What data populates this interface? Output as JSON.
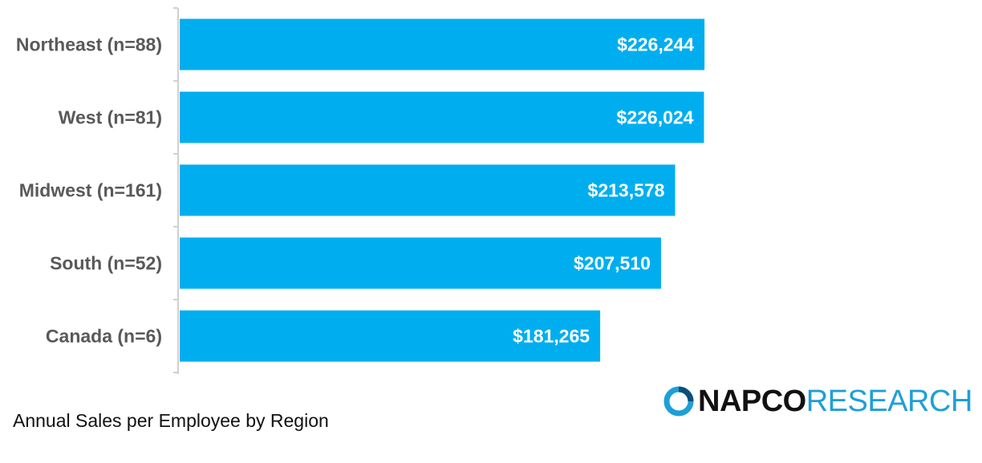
{
  "colors": {
    "bar": "#00aeef",
    "axis": "#d0d0d0",
    "category_text": "#595959",
    "logo_blue": "#1e9fd8"
  },
  "chart_data": {
    "type": "bar",
    "orientation": "horizontal",
    "categories": [
      "Northeast (n=88)",
      "West (n=81)",
      "Midwest (n=161)",
      "South (n=52)",
      "Canada (n=6)"
    ],
    "values": [
      226244,
      226024,
      213578,
      207510,
      181265
    ],
    "value_labels": [
      "$226,244",
      "$226,024",
      "$213,578",
      "$207,510",
      "$181,265"
    ],
    "title": "Annual Sales per Employee by Region",
    "xlim": [
      0,
      240000
    ],
    "grid": false,
    "legend": "none"
  },
  "caption": "Annual Sales per Employee by Region",
  "logo": {
    "napco": "NAPCO",
    "research": "RESEARCH",
    "icon": "napco-circle-logo-icon"
  }
}
